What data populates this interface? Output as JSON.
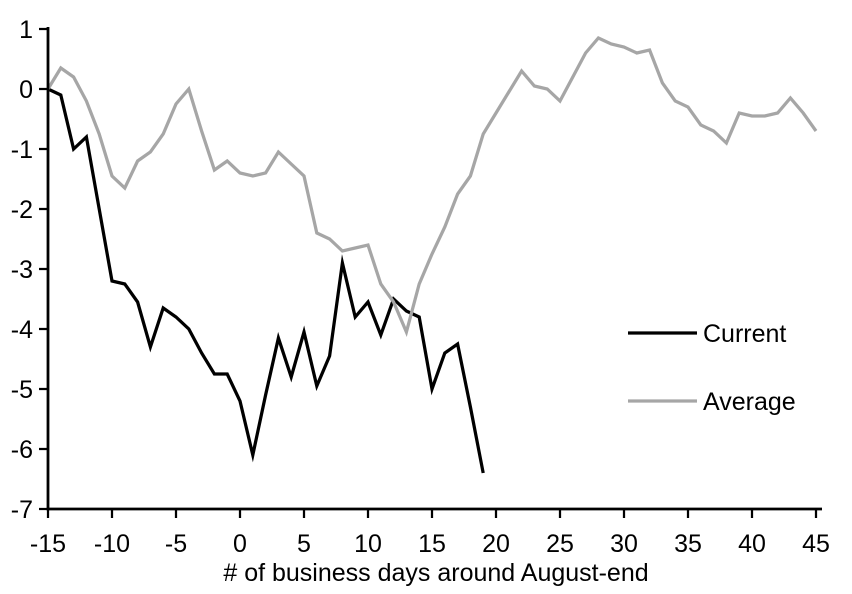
{
  "chart_data": {
    "type": "line",
    "title": "",
    "xlabel": "# of business days around August-end",
    "ylabel": "",
    "xlim": [
      -15,
      45
    ],
    "ylim": [
      -7,
      1
    ],
    "xticks": [
      -15,
      -10,
      -5,
      0,
      5,
      10,
      15,
      20,
      25,
      30,
      35,
      40,
      45
    ],
    "yticks": [
      1,
      0,
      -1,
      -2,
      -3,
      -4,
      -5,
      -6,
      -7
    ],
    "grid": false,
    "legend_position": "right-middle",
    "series": [
      {
        "name": "Current",
        "color": "#000000",
        "x": [
          -15,
          -14,
          -13,
          -12,
          -11,
          -10,
          -9,
          -8,
          -7,
          -6,
          -5,
          -4,
          -3,
          -2,
          -1,
          0,
          1,
          2,
          3,
          4,
          5,
          6,
          7,
          8,
          9,
          10,
          11,
          12,
          13,
          14,
          15,
          16,
          17,
          18,
          19
        ],
        "values": [
          0.0,
          -0.1,
          -1.0,
          -0.8,
          -2.0,
          -3.2,
          -3.25,
          -3.55,
          -4.3,
          -3.65,
          -3.8,
          -4.0,
          -4.4,
          -4.75,
          -4.75,
          -5.2,
          -6.1,
          -5.1,
          -4.15,
          -4.8,
          -4.05,
          -4.95,
          -4.45,
          -2.9,
          -3.8,
          -3.55,
          -4.1,
          -3.5,
          -3.7,
          -3.8,
          -5.0,
          -4.4,
          -4.25,
          -5.3,
          -6.4
        ]
      },
      {
        "name": "Average",
        "color": "#a6a6a6",
        "x": [
          -15,
          -14,
          -13,
          -12,
          -11,
          -10,
          -9,
          -8,
          -7,
          -6,
          -5,
          -4,
          -3,
          -2,
          -1,
          0,
          1,
          2,
          3,
          4,
          5,
          6,
          7,
          8,
          9,
          10,
          11,
          12,
          13,
          14,
          15,
          16,
          17,
          18,
          19,
          20,
          21,
          22,
          23,
          24,
          25,
          26,
          27,
          28,
          29,
          30,
          31,
          32,
          33,
          34,
          35,
          36,
          37,
          38,
          39,
          40,
          41,
          42,
          43,
          44,
          45
        ],
        "values": [
          0.0,
          0.35,
          0.2,
          -0.2,
          -0.75,
          -1.45,
          -1.65,
          -1.2,
          -1.05,
          -0.75,
          -0.25,
          0.0,
          -0.7,
          -1.35,
          -1.2,
          -1.4,
          -1.45,
          -1.4,
          -1.05,
          -1.25,
          -1.45,
          -2.4,
          -2.5,
          -2.7,
          -2.65,
          -2.6,
          -3.25,
          -3.55,
          -4.05,
          -3.25,
          -2.75,
          -2.3,
          -1.75,
          -1.45,
          -0.75,
          -0.4,
          -0.05,
          0.3,
          0.05,
          0.0,
          -0.2,
          0.2,
          0.6,
          0.85,
          0.75,
          0.7,
          0.6,
          0.65,
          0.1,
          -0.2,
          -0.3,
          -0.6,
          -0.7,
          -0.9,
          -0.4,
          -0.45,
          -0.45,
          -0.4,
          -0.15,
          -0.4,
          -0.7
        ]
      }
    ]
  },
  "legend": {
    "current_label": "Current",
    "average_label": "Average"
  },
  "colors": {
    "axis": "#000000",
    "background": "#ffffff",
    "current_line": "#000000",
    "average_line": "#a6a6a6"
  }
}
